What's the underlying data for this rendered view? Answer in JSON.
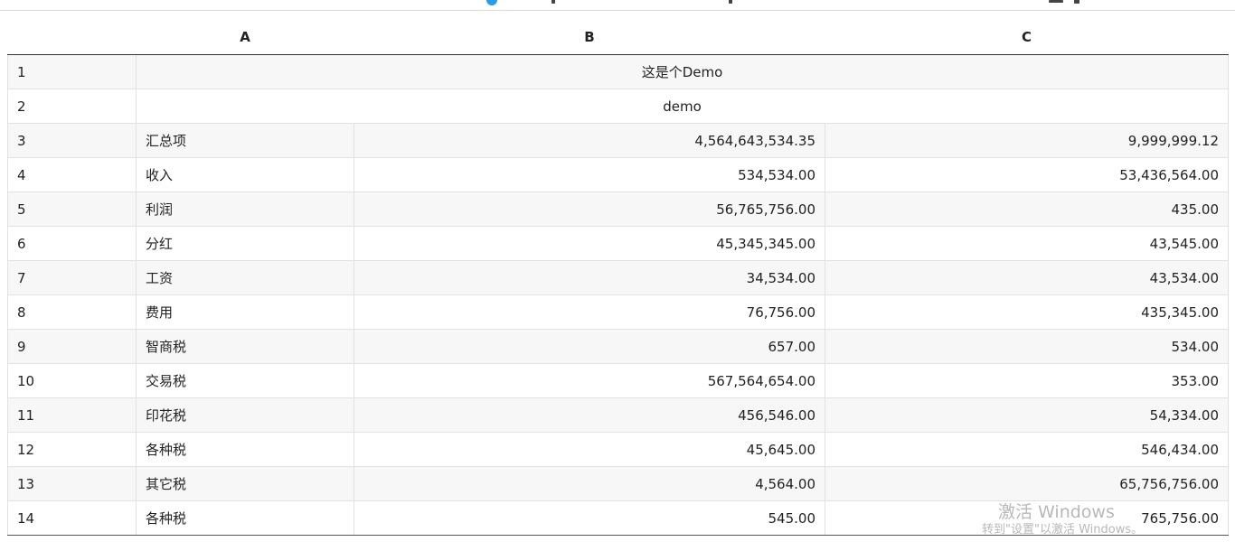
{
  "columns": {
    "row_header": "",
    "a": "A",
    "b": "B",
    "c": "C"
  },
  "rows": [
    {
      "n": "1",
      "merged": "这是个Demo"
    },
    {
      "n": "2",
      "merged": "demo"
    },
    {
      "n": "3",
      "a": "汇总项",
      "b": "4,564,643,534.35",
      "c": "9,999,999.12"
    },
    {
      "n": "4",
      "a": "收入",
      "b": "534,534.00",
      "c": "53,436,564.00"
    },
    {
      "n": "5",
      "a": "利润",
      "b": "56,765,756.00",
      "c": "435.00"
    },
    {
      "n": "6",
      "a": "分红",
      "b": "45,345,345.00",
      "c": "43,545.00"
    },
    {
      "n": "7",
      "a": "工资",
      "b": "34,534.00",
      "c": "43,534.00"
    },
    {
      "n": "8",
      "a": "费用",
      "b": "76,756.00",
      "c": "435,345.00"
    },
    {
      "n": "9",
      "a": "智商税",
      "b": "657.00",
      "c": "534.00"
    },
    {
      "n": "10",
      "a": "交易税",
      "b": "567,564,654.00",
      "c": "353.00"
    },
    {
      "n": "11",
      "a": "印花税",
      "b": "456,546.00",
      "c": "54,334.00"
    },
    {
      "n": "12",
      "a": "各种税",
      "b": "45,645.00",
      "c": "546,434.00"
    },
    {
      "n": "13",
      "a": "其它税",
      "b": "4,564.00",
      "c": "65,756,756.00"
    },
    {
      "n": "14",
      "a": "各种税",
      "b": "545.00",
      "c": "765,756.00"
    }
  ],
  "watermark": {
    "title": "激活 Windows",
    "subtitle": "转到\"设置\"以激活 Windows。"
  }
}
